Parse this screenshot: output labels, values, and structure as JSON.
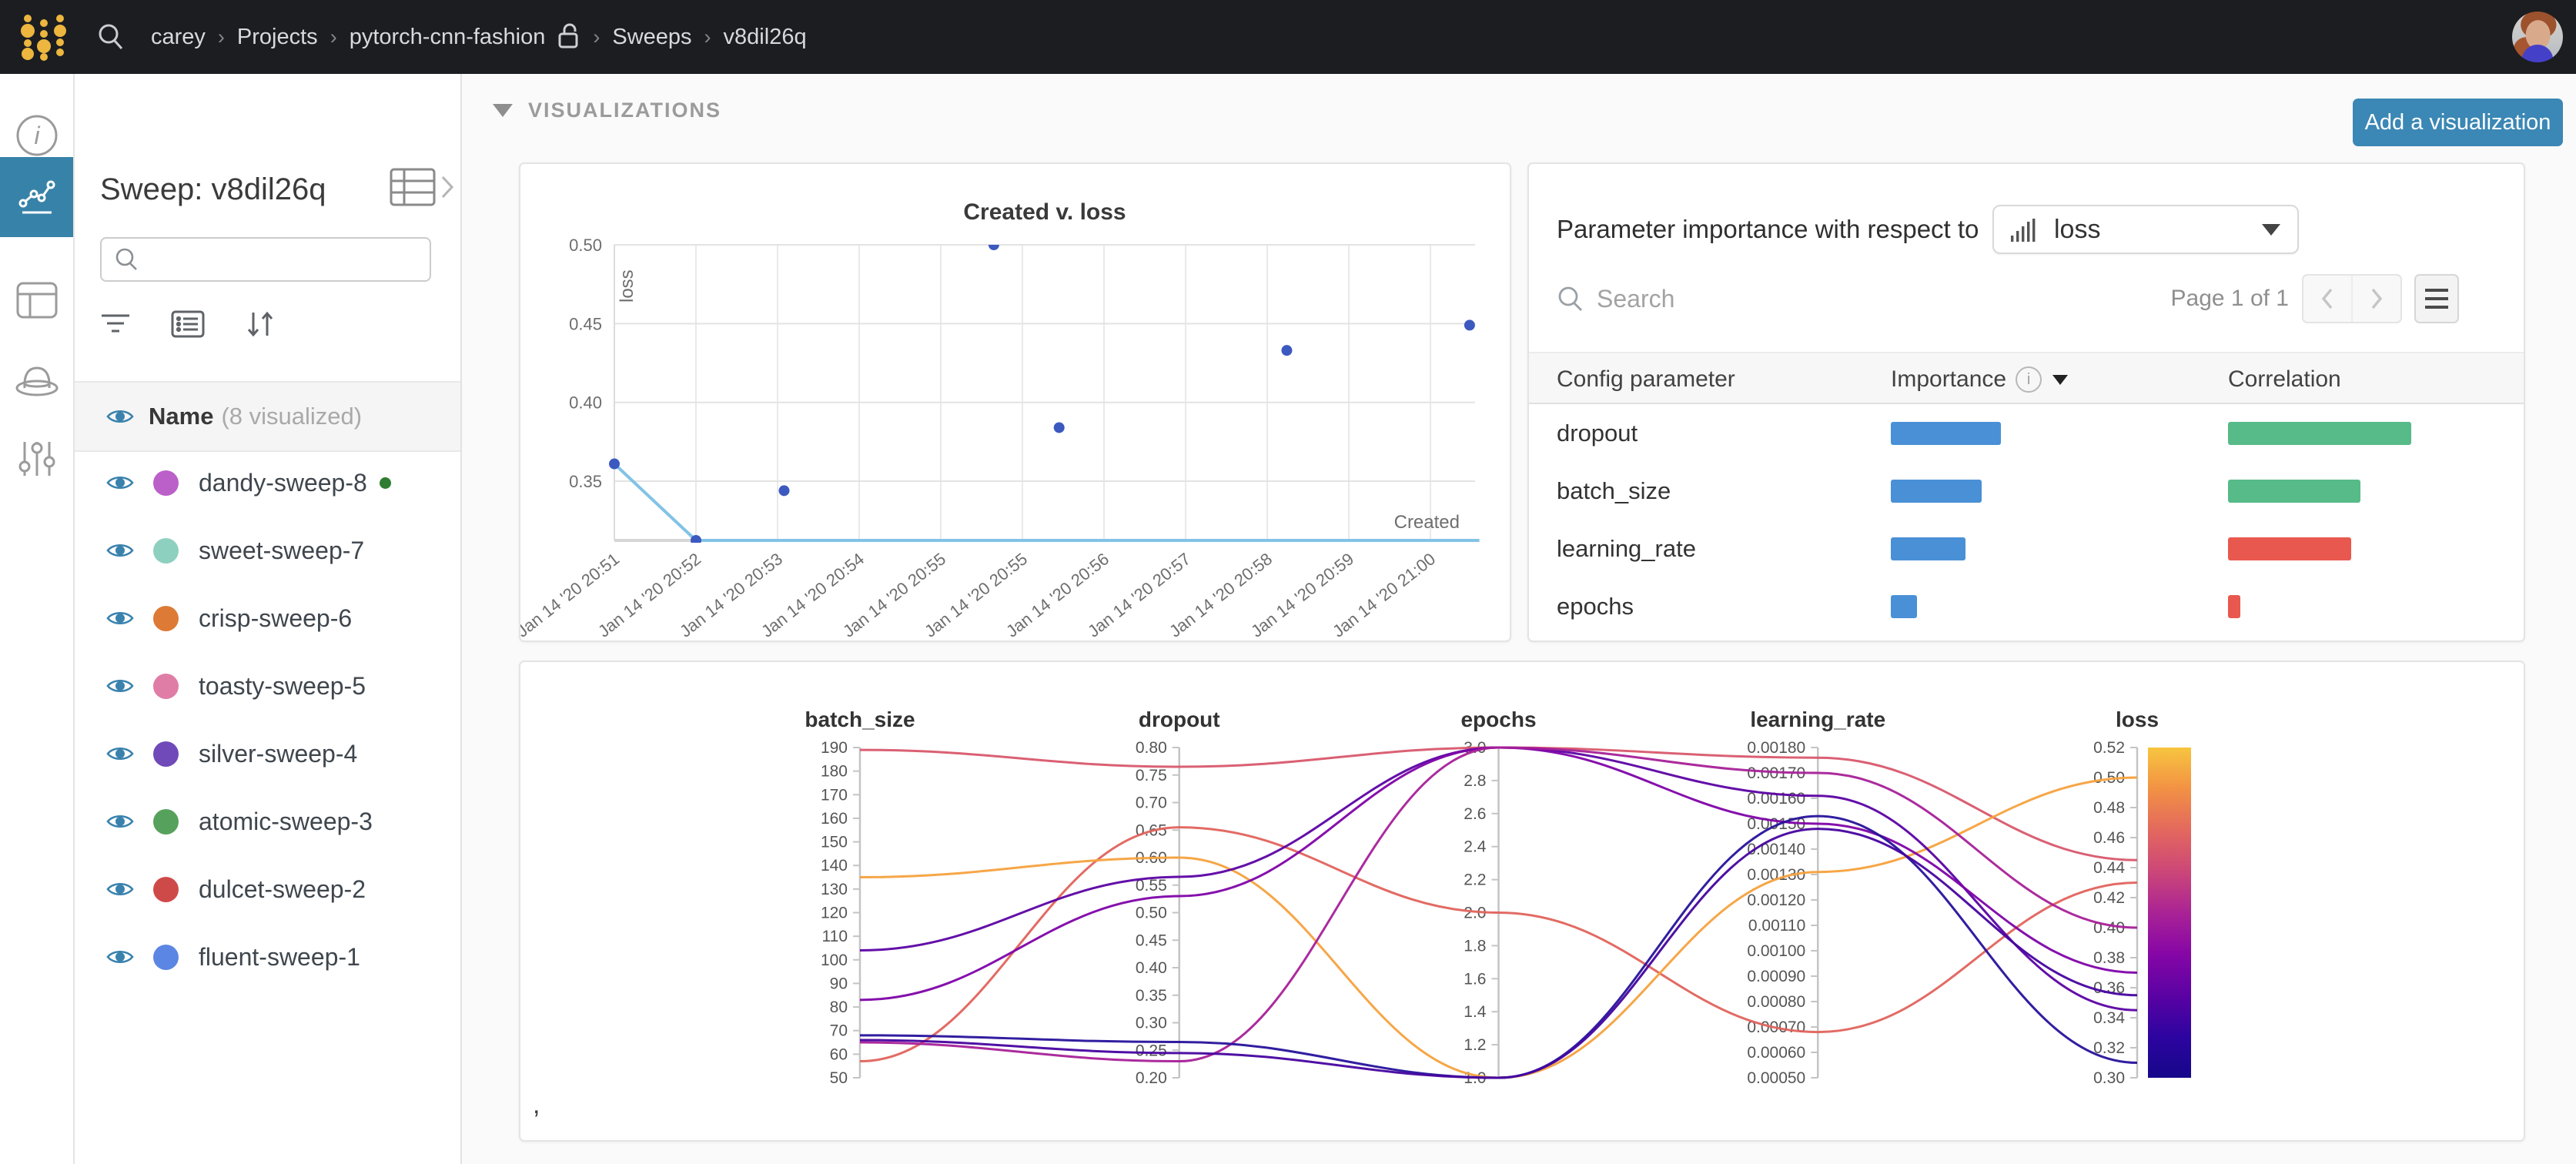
{
  "navbar": {
    "breadcrumb": [
      {
        "label": "carey",
        "lock": false
      },
      {
        "label": "Projects",
        "lock": false
      },
      {
        "label": "pytorch-cnn-fashion",
        "lock": true
      },
      {
        "label": "Sweeps",
        "lock": false
      },
      {
        "label": "v8dil26q",
        "lock": false
      }
    ]
  },
  "sidebar": {
    "title": "Sweep: v8dil26q",
    "search_placeholder": "",
    "runs_header": {
      "name": "Name",
      "suffix": "(8 visualized)"
    },
    "eye_color": "#3a82ad",
    "runs": [
      {
        "name": "dandy-sweep-8",
        "color": "#bb5fc9",
        "running": true,
        "running_color": "#2e7d32"
      },
      {
        "name": "sweet-sweep-7",
        "color": "#8ed0bf",
        "running": false
      },
      {
        "name": "crisp-sweep-6",
        "color": "#dd7a35",
        "running": false
      },
      {
        "name": "toasty-sweep-5",
        "color": "#e07da6",
        "running": false
      },
      {
        "name": "silver-sweep-4",
        "color": "#6f4ab8",
        "running": false
      },
      {
        "name": "atomic-sweep-3",
        "color": "#56a25c",
        "running": false
      },
      {
        "name": "dulcet-sweep-2",
        "color": "#ce4a49",
        "running": false
      },
      {
        "name": "fluent-sweep-1",
        "color": "#5c86e3",
        "running": false
      }
    ]
  },
  "main": {
    "section_label": "VISUALIZATIONS",
    "add_button": "Add a visualization",
    "footnote": ","
  },
  "param_importance": {
    "title": "Parameter importance with respect to",
    "metric": "loss",
    "search_placeholder": "Search",
    "page_label": "Page 1 of 1",
    "columns": [
      "Config parameter",
      "Importance",
      "Correlation"
    ],
    "importance_color": "#4a90d6",
    "positive_color": "#57ba89",
    "negative_color": "#e8584e",
    "rows": [
      {
        "param": "dropout",
        "importance": 0.34,
        "correlation": 0.61,
        "positive": true
      },
      {
        "param": "batch_size",
        "importance": 0.28,
        "correlation": 0.44,
        "positive": true
      },
      {
        "param": "learning_rate",
        "importance": 0.23,
        "correlation": 0.41,
        "positive": false
      },
      {
        "param": "epochs",
        "importance": 0.08,
        "correlation": 0.04,
        "positive": false
      }
    ]
  },
  "chart_data": [
    {
      "id": "created_vs_loss",
      "type": "scatter",
      "title": "Created v. loss",
      "xlabel": "Created",
      "ylabel": "loss",
      "x_ticks": [
        "Jan 14 '20 20:51",
        "Jan 14 '20 20:52",
        "Jan 14 '20 20:53",
        "Jan 14 '20 20:54",
        "Jan 14 '20 20:55",
        "Jan 14 '20 20:55",
        "Jan 14 '20 20:56",
        "Jan 14 '20 20:57",
        "Jan 14 '20 20:58",
        "Jan 14 '20 20:59",
        "Jan 14 '20 21:00"
      ],
      "y_ticks": [
        "0.50",
        "0.45",
        "0.40",
        "0.35"
      ],
      "ylim": [
        0.3124,
        0.5
      ],
      "point_color": "#3c59c0",
      "min_line_color": "#82c3e6",
      "points": [
        {
          "x": 0.0,
          "loss": 0.361
        },
        {
          "x": 0.1,
          "loss": 0.3124
        },
        {
          "x": 0.208,
          "loss": 0.344
        },
        {
          "x": 0.465,
          "loss": 0.5
        },
        {
          "x": 0.545,
          "loss": 0.384
        },
        {
          "x": 0.824,
          "loss": 0.433
        },
        {
          "x": 1.048,
          "loss": 0.449
        }
      ],
      "min_line": [
        {
          "x": 0.0,
          "loss": 0.361
        },
        {
          "x": 0.1,
          "loss": 0.3124
        },
        {
          "x": 1.06,
          "loss": 0.3124
        }
      ]
    },
    {
      "id": "hyperparameter_parallel_coordinates",
      "type": "parallel",
      "axes": [
        {
          "name": "batch_size",
          "max": 190,
          "min": 50,
          "ticks": [
            "190",
            "180",
            "170",
            "160",
            "150",
            "140",
            "130",
            "120",
            "110",
            "100",
            "90",
            "80",
            "70",
            "60",
            "50"
          ]
        },
        {
          "name": "dropout",
          "max": 0.8,
          "min": 0.2,
          "ticks": [
            "0.80",
            "0.75",
            "0.70",
            "0.65",
            "0.60",
            "0.55",
            "0.50",
            "0.45",
            "0.40",
            "0.35",
            "0.30",
            "0.25",
            "0.20"
          ]
        },
        {
          "name": "epochs",
          "max": 3.0,
          "min": 1.0,
          "ticks": [
            "3.0",
            "2.8",
            "2.6",
            "2.4",
            "2.2",
            "2.0",
            "1.8",
            "1.6",
            "1.4",
            "1.2",
            "1.0"
          ]
        },
        {
          "name": "learning_rate",
          "max": 0.0018,
          "min": 0.0005,
          "ticks": [
            "0.00180",
            "0.00170",
            "0.00160",
            "0.00150",
            "0.00140",
            "0.00130",
            "0.00120",
            "0.00110",
            "0.00100",
            "0.00090",
            "0.00080",
            "0.00070",
            "0.00060",
            "0.00050"
          ]
        },
        {
          "name": "loss",
          "max": 0.52,
          "min": 0.3,
          "ticks": [
            "0.52",
            "0.50",
            "0.48",
            "0.46",
            "0.44",
            "0.42",
            "0.40",
            "0.38",
            "0.36",
            "0.34",
            "0.32",
            "0.30"
          ]
        }
      ],
      "runs": [
        {
          "color": "#d8576b",
          "values": {
            "batch_size": 189,
            "dropout": 0.765,
            "epochs": 3.0,
            "learning_rate": 0.00176,
            "loss": 0.445
          }
        },
        {
          "color": "#e0635c",
          "values": {
            "batch_size": 57,
            "dropout": 0.655,
            "epochs": 2.0,
            "learning_rate": 0.00068,
            "loss": 0.43
          }
        },
        {
          "color": "#f5a13d",
          "values": {
            "batch_size": 135,
            "dropout": 0.6,
            "epochs": 1.0,
            "learning_rate": 0.00131,
            "loss": 0.5
          }
        },
        {
          "color": "#5b02a3",
          "values": {
            "batch_size": 104,
            "dropout": 0.565,
            "epochs": 3.0,
            "learning_rate": 0.00161,
            "loss": 0.345
          }
        },
        {
          "color": "#7e03a8",
          "values": {
            "batch_size": 83,
            "dropout": 0.53,
            "epochs": 3.0,
            "learning_rate": 0.0015,
            "loss": 0.37
          }
        },
        {
          "color": "#a62098",
          "values": {
            "batch_size": 65,
            "dropout": 0.23,
            "epochs": 3.0,
            "learning_rate": 0.0017,
            "loss": 0.4
          }
        },
        {
          "color": "#26129b",
          "values": {
            "batch_size": 68,
            "dropout": 0.265,
            "epochs": 1.0,
            "learning_rate": 0.00153,
            "loss": 0.31
          }
        },
        {
          "color": "#46039f",
          "values": {
            "batch_size": 66,
            "dropout": 0.245,
            "epochs": 1.0,
            "learning_rate": 0.00148,
            "loss": 0.355
          }
        }
      ],
      "colorbar": {
        "metric": "loss",
        "top_value": 0.52,
        "bottom_value": 0.3,
        "stops": [
          "#f7c53f",
          "#f29144",
          "#e3685e",
          "#cc4778",
          "#aa2395",
          "#8606a6",
          "#5b02a3",
          "#2d04a0",
          "#16078a"
        ]
      }
    }
  ]
}
